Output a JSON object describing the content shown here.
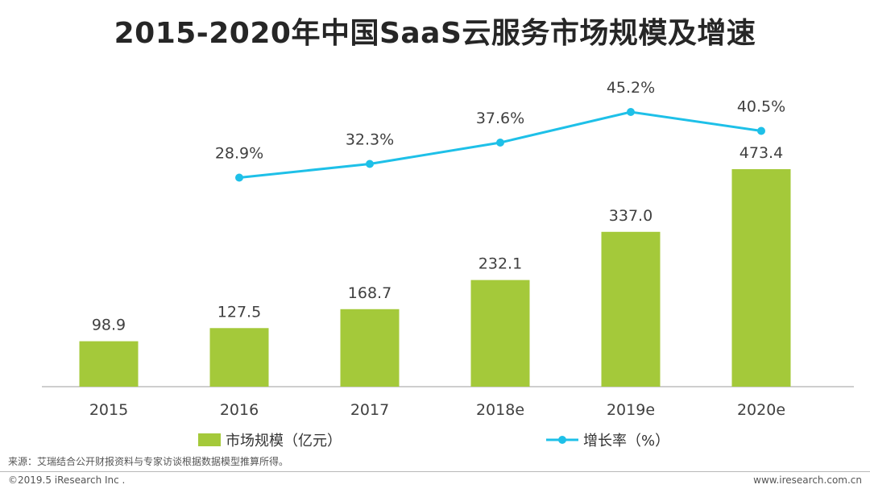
{
  "chart_data": {
    "type": "bar",
    "title": "2015-2020年中国SaaS云服务市场规模及增速",
    "categories": [
      "2015",
      "2016",
      "2017",
      "2018e",
      "2019e",
      "2020e"
    ],
    "series": [
      {
        "name": "市场规模（亿元）",
        "type": "bar",
        "values": [
          98.9,
          127.5,
          168.7,
          232.1,
          337.0,
          473.4
        ],
        "labels": [
          "98.9",
          "127.5",
          "168.7",
          "232.1",
          "337.0",
          "473.4"
        ],
        "color": "#a4c93a"
      },
      {
        "name": "增长率（%）",
        "type": "line",
        "values": [
          null,
          28.9,
          32.3,
          37.6,
          45.2,
          40.5
        ],
        "labels": [
          "",
          "28.9%",
          "32.3%",
          "37.6%",
          "45.2%",
          "40.5%"
        ],
        "color": "#1ec0e8"
      }
    ],
    "bar_ylim": [
      0,
      500
    ],
    "line_ylim": [
      0,
      50
    ],
    "legend_position": "bottom",
    "grid": false
  },
  "footer": {
    "source": "来源：艾瑞结合公开财报资料与专家访谈根据数据模型推算所得。",
    "copyright": "©2019.5 iResearch Inc .",
    "website": "www.iresearch.com.cn"
  }
}
